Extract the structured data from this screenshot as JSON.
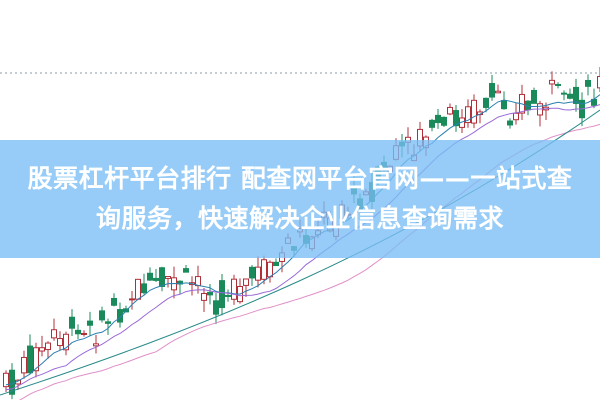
{
  "headline": "股票杠杆平台排行 配查网平台官网——一站式查询服务，快速解决企业信息查询需求",
  "colors": {
    "up": "#b0303a",
    "down": "#1a8a5a",
    "banner": "#78bef5",
    "ma_short": "#2a7fb0",
    "ma_mid": "#9a6ad8",
    "ma_pink": "#e090c8",
    "ma_long": "#2a8a8a"
  }
}
